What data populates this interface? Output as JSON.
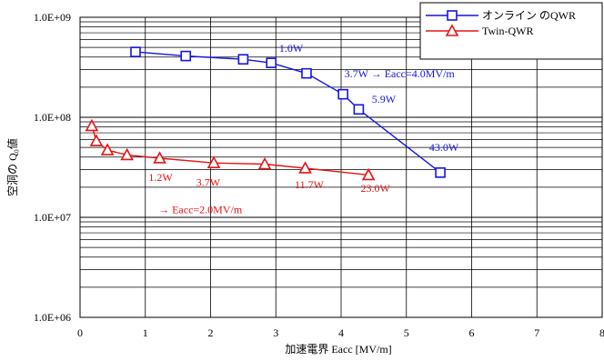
{
  "chart_data": {
    "type": "line",
    "xlabel": "加速電界 Eacc [MV/m]",
    "ylabel": "空洞の Q₀値",
    "y_scale": "log",
    "xlim": [
      0,
      8
    ],
    "ylim": [
      1000000,
      1000000000
    ],
    "grid": true,
    "legend_position": "top-right",
    "x_ticks": [
      "0",
      "1",
      "2",
      "3",
      "4",
      "5",
      "6",
      "7",
      "8"
    ],
    "y_ticks": [
      "1.0E+06",
      "1.0E+07",
      "1.0E+08",
      "1.0E+09"
    ],
    "series": [
      {
        "name": "オンライン のQWR",
        "color": "#1414e6",
        "marker": "square",
        "x": [
          0.85,
          1.62,
          2.5,
          2.93,
          3.47,
          4.03,
          4.27,
          5.52
        ],
        "y": [
          450000000,
          410000000,
          380000000,
          350000000,
          275000000,
          170000000,
          120000000,
          28000000
        ]
      },
      {
        "name": "Twin-QWR",
        "color": "#e61414",
        "marker": "triangle",
        "x": [
          0.18,
          0.25,
          0.42,
          0.72,
          1.22,
          2.05,
          2.83,
          3.45,
          4.42
        ],
        "y": [
          82000000,
          58000000,
          47000000,
          42000000,
          39000000,
          35000000,
          34000000,
          31000000,
          26500000
        ]
      }
    ],
    "annotations": [
      {
        "text": "1.0W",
        "color": "#1414e6",
        "x": 3.05,
        "y": 450000000
      },
      {
        "text": "3.7W → Eacc=4.0MV/m",
        "color": "#1414e6",
        "x": 4.05,
        "y": 250000000
      },
      {
        "text": "5.9W",
        "color": "#1414e6",
        "x": 4.47,
        "y": 140000000
      },
      {
        "text": "43.0W",
        "color": "#1414e6",
        "x": 5.35,
        "y": 46000000
      },
      {
        "text": "1.2W",
        "color": "#e61414",
        "x": 1.05,
        "y": 23000000
      },
      {
        "text": "3.7W",
        "color": "#e61414",
        "x": 1.78,
        "y": 20500000
      },
      {
        "text": "11.7W",
        "color": "#e61414",
        "x": 3.29,
        "y": 19500000
      },
      {
        "text": "23.0W",
        "color": "#e61414",
        "x": 4.3,
        "y": 18000000
      },
      {
        "text": "→ Eacc=2.0MV/m",
        "color": "#e61414",
        "x": 1.2,
        "y": 11000000
      }
    ]
  }
}
